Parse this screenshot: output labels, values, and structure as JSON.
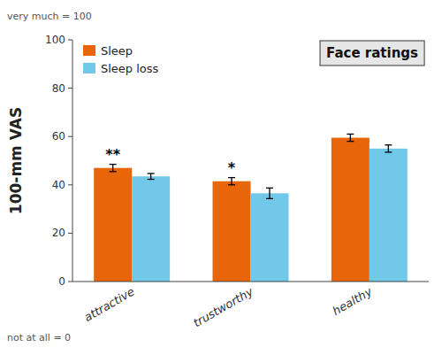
{
  "chart_data": {
    "type": "bar",
    "title": "Face ratings",
    "categories": [
      "attractive",
      "trustworthy",
      "healthy"
    ],
    "series": [
      {
        "name": "Sleep",
        "color": "#E8650A",
        "values": [
          47.0,
          41.5,
          59.5
        ],
        "errors": [
          1.5,
          1.5,
          1.5
        ],
        "significance": [
          "**",
          "*",
          null
        ]
      },
      {
        "name": "Sleep loss",
        "color": "#72C8E8",
        "values": [
          43.5,
          36.5,
          55.0
        ],
        "errors": [
          1.2,
          2.2,
          1.5
        ]
      }
    ],
    "ylabel": "100-mm VAS",
    "top_label": "very much = 100",
    "bottom_label": "not at all = 0",
    "ylim": [
      0,
      100
    ],
    "yticks": [
      0,
      20,
      40,
      60,
      80,
      100
    ],
    "grid": false,
    "legend": "upper left"
  }
}
